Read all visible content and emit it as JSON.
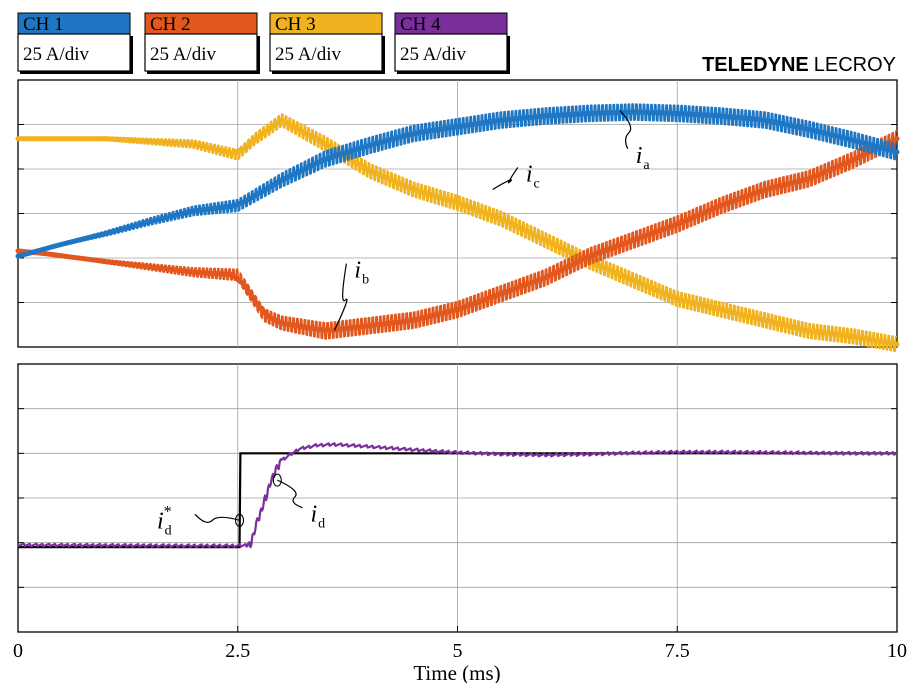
{
  "brand": {
    "bold": "TELEDYNE",
    "light": "LECROY"
  },
  "channels": [
    {
      "label": "CH 1",
      "scale": "25 A/div",
      "color": "#1f77c4"
    },
    {
      "label": "CH 2",
      "scale": "25 A/div",
      "color": "#e2571d"
    },
    {
      "label": "CH 3",
      "scale": "25 A/div",
      "color": "#f0b21e"
    },
    {
      "label": "CH 4",
      "scale": "25 A/div",
      "color": "#7b2f9b"
    }
  ],
  "colors": {
    "reference": "#000000",
    "grid": "#a0a0a0"
  },
  "chart_data": [
    {
      "type": "line",
      "xlim": [
        0,
        10
      ],
      "grid": true,
      "series": [
        {
          "name": "i_a",
          "ripple_pp": [
            0.1,
            0.6
          ],
          "x": [
            0,
            0.5,
            1,
            1.5,
            2,
            2.5,
            3,
            3.5,
            4,
            4.5,
            5,
            5.5,
            6,
            6.5,
            7,
            7.5,
            8,
            8.5,
            9,
            9.5,
            10
          ],
          "y": [
            -1.6,
            -1.15,
            -0.75,
            -0.3,
            0.1,
            0.3,
            1.25,
            2.05,
            2.55,
            3.0,
            3.25,
            3.5,
            3.65,
            3.75,
            3.8,
            3.75,
            3.65,
            3.5,
            3.15,
            2.75,
            2.3
          ]
        },
        {
          "name": "i_b",
          "ripple_pp": [
            0.05,
            0.6
          ],
          "x": [
            0,
            0.3,
            1,
            2,
            2.5,
            2.8,
            3,
            3.5,
            4,
            4.5,
            5,
            5.5,
            6,
            6.5,
            7,
            7.5,
            8,
            8.5,
            9,
            9.5,
            10
          ],
          "y": [
            -1.4,
            -1.5,
            -1.8,
            -2.2,
            -2.3,
            -3.8,
            -4.1,
            -4.4,
            -4.2,
            -4.0,
            -3.6,
            -3.0,
            -2.4,
            -1.6,
            -1.0,
            -0.4,
            0.3,
            0.9,
            1.3,
            2.0,
            2.8
          ]
        },
        {
          "name": "i_c",
          "ripple_pp": [
            0.05,
            0.55
          ],
          "x": [
            0,
            1,
            2,
            2.5,
            2.7,
            3,
            3.5,
            4,
            4.5,
            5,
            5.5,
            6,
            6.5,
            7,
            7.5,
            8,
            8.5,
            9,
            9.5,
            10
          ],
          "y": [
            2.8,
            2.8,
            2.6,
            2.2,
            2.8,
            3.5,
            2.6,
            1.6,
            0.9,
            0.4,
            -0.2,
            -1.0,
            -1.8,
            -2.5,
            -3.2,
            -3.6,
            -4.0,
            -4.4,
            -4.6,
            -4.9
          ]
        }
      ],
      "annotations": [
        {
          "text": "i",
          "sub": "a",
          "x": 6.85,
          "y": 3.85,
          "label_x": 7.05,
          "label_y": 2.2
        },
        {
          "text": "i",
          "sub": "b",
          "x": 3.6,
          "y": -4.38,
          "label_x": 3.85,
          "label_y": -2.1
        },
        {
          "text": "i",
          "sub": "c",
          "x": 5.4,
          "y": 0.9,
          "label_x": 5.8,
          "label_y": 1.5
        }
      ]
    },
    {
      "type": "line",
      "xlim": [
        0,
        10
      ],
      "grid": true,
      "series": [
        {
          "name": "i_d*",
          "role": "reference",
          "x": [
            0,
            2.52,
            2.53,
            10
          ],
          "y": [
            -1.1,
            -1.1,
            1.0,
            1.0
          ]
        },
        {
          "name": "i_d",
          "role": "measured",
          "x": [
            0,
            1,
            2,
            2.5,
            2.65,
            2.7,
            2.8,
            2.9,
            3.0,
            3.2,
            3.4,
            3.6,
            4.0,
            4.5,
            5,
            5.5,
            6,
            6.5,
            7,
            7.5,
            8,
            8.5,
            9,
            9.5,
            10
          ],
          "y": [
            -1.05,
            -1.06,
            -1.07,
            -1.07,
            -1.05,
            -0.65,
            -0.1,
            0.5,
            0.85,
            1.1,
            1.18,
            1.2,
            1.15,
            1.08,
            1.02,
            0.98,
            0.96,
            0.98,
            1.01,
            1.03,
            1.03,
            1.02,
            1.01,
            1.0,
            1.0
          ]
        }
      ],
      "annotations": [
        {
          "text": "i",
          "sub": "d",
          "sup": "*",
          "x": 2.52,
          "y": -0.5,
          "label_x": 1.9,
          "label_y": -0.5
        },
        {
          "text": "i",
          "sub": "d",
          "x": 2.95,
          "y": 0.4,
          "label_x": 3.35,
          "label_y": -0.35
        }
      ]
    }
  ],
  "x_ticks": [
    {
      "value": 0,
      "label": "0"
    },
    {
      "value": 2.5,
      "label": "2.5"
    },
    {
      "value": 5,
      "label": "5"
    },
    {
      "value": 7.5,
      "label": "7.5"
    },
    {
      "value": 10,
      "label": "10"
    }
  ],
  "xlabel": "Time (ms)"
}
